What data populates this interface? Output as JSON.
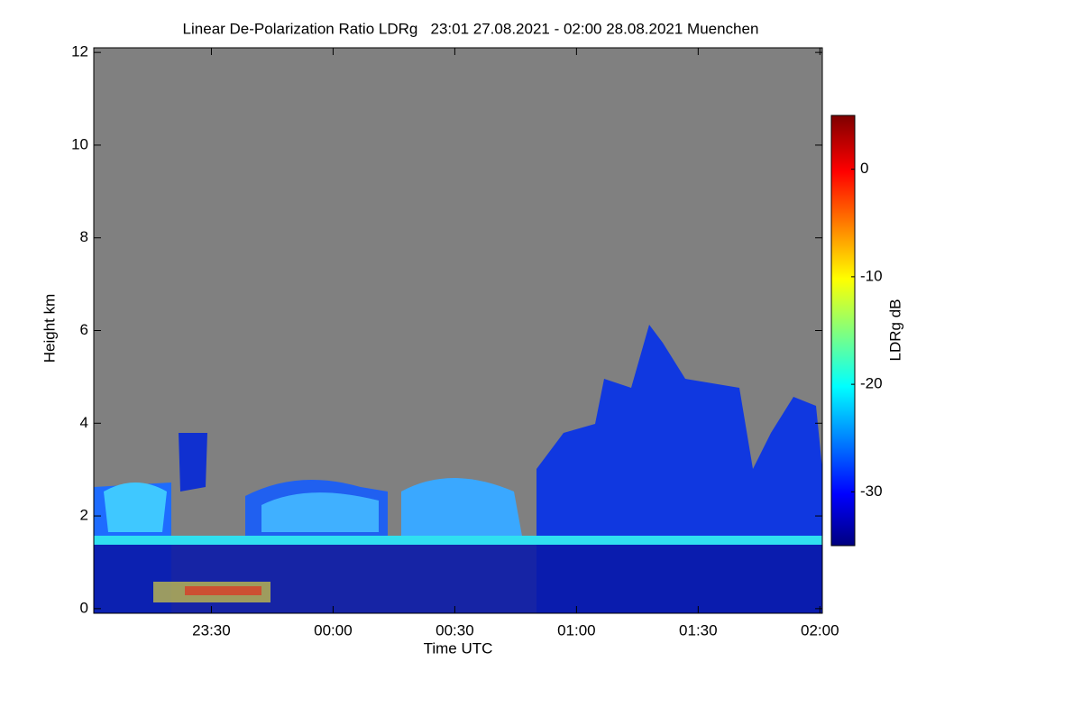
{
  "chart_data": {
    "type": "heatmap",
    "title": "Linear De-Polarization Ratio LDRg   23:01 27.08.2021 - 02:00 28.08.2021 Muenchen",
    "x_label": "Time UTC",
    "y_label": "Height km",
    "colorbar_label": "LDRg dB",
    "xlim": [
      23.0167,
      26.01
    ],
    "xticks": [
      {
        "value": 23.5,
        "label": "23:30"
      },
      {
        "value": 24,
        "label": "00:00"
      },
      {
        "value": 24.5,
        "label": "00:30"
      },
      {
        "value": 25,
        "label": "01:00"
      },
      {
        "value": 25.5,
        "label": "01:30"
      },
      {
        "value": 26,
        "label": "02:00"
      }
    ],
    "ylim": [
      -0.1,
      12.1
    ],
    "yticks": [
      0,
      2,
      4,
      6,
      8,
      10,
      12
    ],
    "zlim": [
      -35,
      5
    ],
    "zticks": [
      0,
      -10,
      -20,
      -30
    ],
    "colormap": "jet",
    "background": "#808080"
  }
}
